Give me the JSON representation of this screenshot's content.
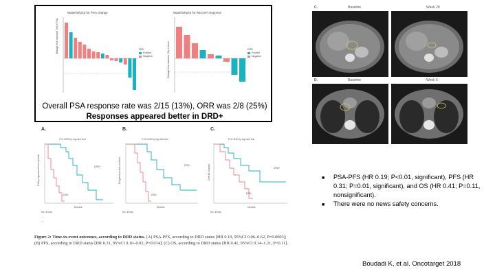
{
  "waterfall": {
    "psa_title": "Waterfall plot for PSA change",
    "recist_title": "Waterfall plot for RECIST response",
    "psa_ylabel": "Change from baseline (%) in PSA",
    "recist_ylabel": "Change from baseline (%) in tumor",
    "legend_title": "DRD",
    "legend_items": [
      "Positive",
      "Negative"
    ],
    "colors": {
      "positive": "#19b3bf",
      "negative": "#f08080"
    }
  },
  "caption_line1": "Overall PSA response rate was 2/15 (13%), ORR was 2/8 (25%)",
  "caption_line2": "Responses appeared better in DRD+",
  "km": {
    "panels": [
      {
        "letter": "A.",
        "note": "P=0.0003 by log rank test",
        "ylabel": "PSA progression-free survival"
      },
      {
        "letter": "B.",
        "note": "P=0.0143 by log rank test",
        "ylabel": "Progression-free survival"
      },
      {
        "letter": "C.",
        "note": "P=0.1100 by log rank test",
        "ylabel": "Overall survival"
      }
    ],
    "curve_labels": {
      "pos": "DRD+",
      "neg": "DRD-"
    },
    "x_label": "Months",
    "risk_label": "No. at risk",
    "colors": {
      "pos": "#19b3bf",
      "neg": "#f08080"
    }
  },
  "figure_caption": {
    "label": "Figure 2: Time-to-event outcomes, according to DRD status.",
    "text": " (A) PSA-PFS, according to DRD status [HR 0.19, 95%CI 0.06–0.62, P=0.0003]; (B) PFS, according to DRD status [HR 0.31, 95%CI 0.10–0.92, P=0.014]; (C) OS, according to DRD status [HR 0.41, 95%CI 0.14–1.21, P=0.11]."
  },
  "ct": {
    "labels": [
      "C.",
      "Baseline",
      "Week 20",
      "D.",
      "Baseline",
      "Week 5"
    ]
  },
  "bullets": [
    "PSA-PFS (HR 0.19; P<0.01, significant), PFS (HR 0.31; P=0.01, significant), and OS (HR 0.41; P=0.11, nonsignificant).",
    "There were no news safety concerns."
  ],
  "citation": "Boudadi K, et al. Oncotarget 2018"
}
